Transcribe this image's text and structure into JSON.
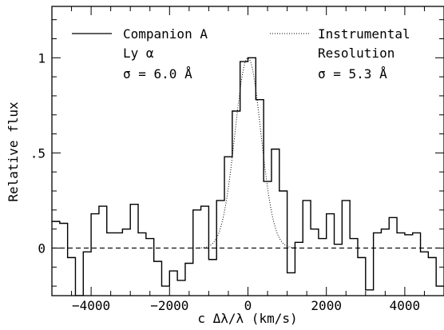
{
  "chart_data": {
    "type": "line",
    "xlabel": "c Δλ/λ (km/s)",
    "ylabel": "Relative flux",
    "xlim": [
      -5000,
      5000
    ],
    "ylim": [
      -0.25,
      1.27
    ],
    "x_ticks": [
      -4000,
      -2000,
      0,
      2000,
      4000
    ],
    "x_tick_labels": [
      "−4000",
      "−2000",
      "0",
      "2000",
      "4000"
    ],
    "y_ticks": [
      0,
      0.5,
      1
    ],
    "y_tick_labels": [
      "0",
      ".5",
      "1"
    ],
    "reference_line": {
      "y": 0,
      "style": "dashed"
    },
    "legend": {
      "placement": "top",
      "entries": [
        {
          "name": "Companion A",
          "style": "solid",
          "lines": [
            "Ly α",
            "σ = 6.0 Å"
          ]
        },
        {
          "name": "Instrumental",
          "style": "dotted",
          "lines": [
            "Resolution",
            "σ = 5.3 Å"
          ]
        }
      ]
    },
    "series": [
      {
        "name": "Companion A",
        "style": "steps",
        "x": [
          -5000,
          -4800,
          -4600,
          -4400,
          -4200,
          -4000,
          -3800,
          -3600,
          -3400,
          -3200,
          -3000,
          -2800,
          -2600,
          -2400,
          -2200,
          -2000,
          -1800,
          -1600,
          -1400,
          -1200,
          -1000,
          -800,
          -600,
          -400,
          -200,
          0,
          200,
          400,
          600,
          800,
          1000,
          1200,
          1400,
          1600,
          1800,
          2000,
          2200,
          2400,
          2600,
          2800,
          3000,
          3200,
          3400,
          3600,
          3800,
          4000,
          4200,
          4400,
          4600,
          4800,
          5000
        ],
        "y": [
          0.14,
          0.13,
          -0.05,
          -0.25,
          -0.02,
          0.18,
          0.22,
          0.08,
          0.08,
          0.1,
          0.23,
          0.08,
          0.05,
          -0.07,
          -0.2,
          -0.12,
          -0.17,
          -0.08,
          0.2,
          0.22,
          -0.06,
          0.25,
          0.48,
          0.72,
          0.98,
          1.0,
          0.78,
          0.35,
          0.52,
          0.3,
          -0.13,
          0.03,
          0.25,
          0.1,
          0.05,
          0.18,
          0.02,
          0.25,
          0.05,
          -0.05,
          -0.22,
          0.08,
          0.1,
          0.16,
          0.08,
          0.07,
          0.08,
          -0.02,
          -0.05,
          -0.2,
          -0.2
        ]
      },
      {
        "name": "Instrumental",
        "style": "dotted",
        "sigma_kms": 330,
        "amplitude": 1.0,
        "x_range": [
          -1250,
          1250
        ]
      }
    ]
  }
}
